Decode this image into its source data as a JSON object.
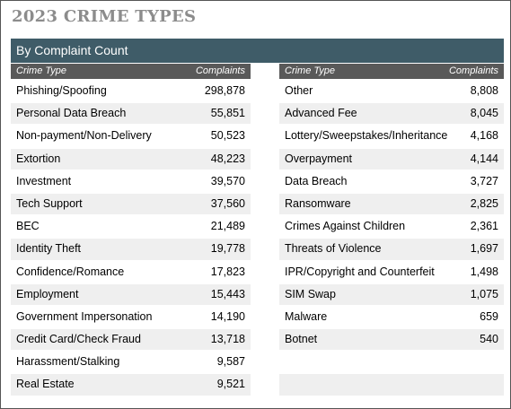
{
  "title": "2023 CRIME TYPES",
  "banner": "By Complaint Count",
  "headers": {
    "type": "Crime Type",
    "count": "Complaints"
  },
  "left": [
    {
      "name": "Phishing/Spoofing",
      "count": "298,878"
    },
    {
      "name": "Personal Data Breach",
      "count": "55,851"
    },
    {
      "name": "Non-payment/Non-Delivery",
      "count": "50,523"
    },
    {
      "name": "Extortion",
      "count": "48,223"
    },
    {
      "name": "Investment",
      "count": "39,570"
    },
    {
      "name": "Tech Support",
      "count": "37,560"
    },
    {
      "name": "BEC",
      "count": "21,489"
    },
    {
      "name": "Identity Theft",
      "count": "19,778"
    },
    {
      "name": "Confidence/Romance",
      "count": "17,823"
    },
    {
      "name": "Employment",
      "count": "15,443"
    },
    {
      "name": "Government Impersonation",
      "count": "14,190"
    },
    {
      "name": "Credit Card/Check Fraud",
      "count": "13,718"
    },
    {
      "name": "Harassment/Stalking",
      "count": "9,587"
    },
    {
      "name": "Real Estate",
      "count": "9,521"
    }
  ],
  "right": [
    {
      "name": "Other",
      "count": "8,808"
    },
    {
      "name": "Advanced Fee",
      "count": "8,045"
    },
    {
      "name": "Lottery/Sweepstakes/Inheritance",
      "count": "4,168"
    },
    {
      "name": "Overpayment",
      "count": "4,144"
    },
    {
      "name": "Data Breach",
      "count": "3,727"
    },
    {
      "name": "Ransomware",
      "count": "2,825"
    },
    {
      "name": "Crimes Against Children",
      "count": "2,361"
    },
    {
      "name": "Threats of Violence",
      "count": "1,697"
    },
    {
      "name": "IPR/Copyright and Counterfeit",
      "count": "1,498"
    },
    {
      "name": "SIM Swap",
      "count": "1,075"
    },
    {
      "name": "Malware",
      "count": "659"
    },
    {
      "name": "Botnet",
      "count": "540"
    },
    {
      "name": "",
      "count": ""
    },
    {
      "name": "",
      "count": ""
    }
  ]
}
